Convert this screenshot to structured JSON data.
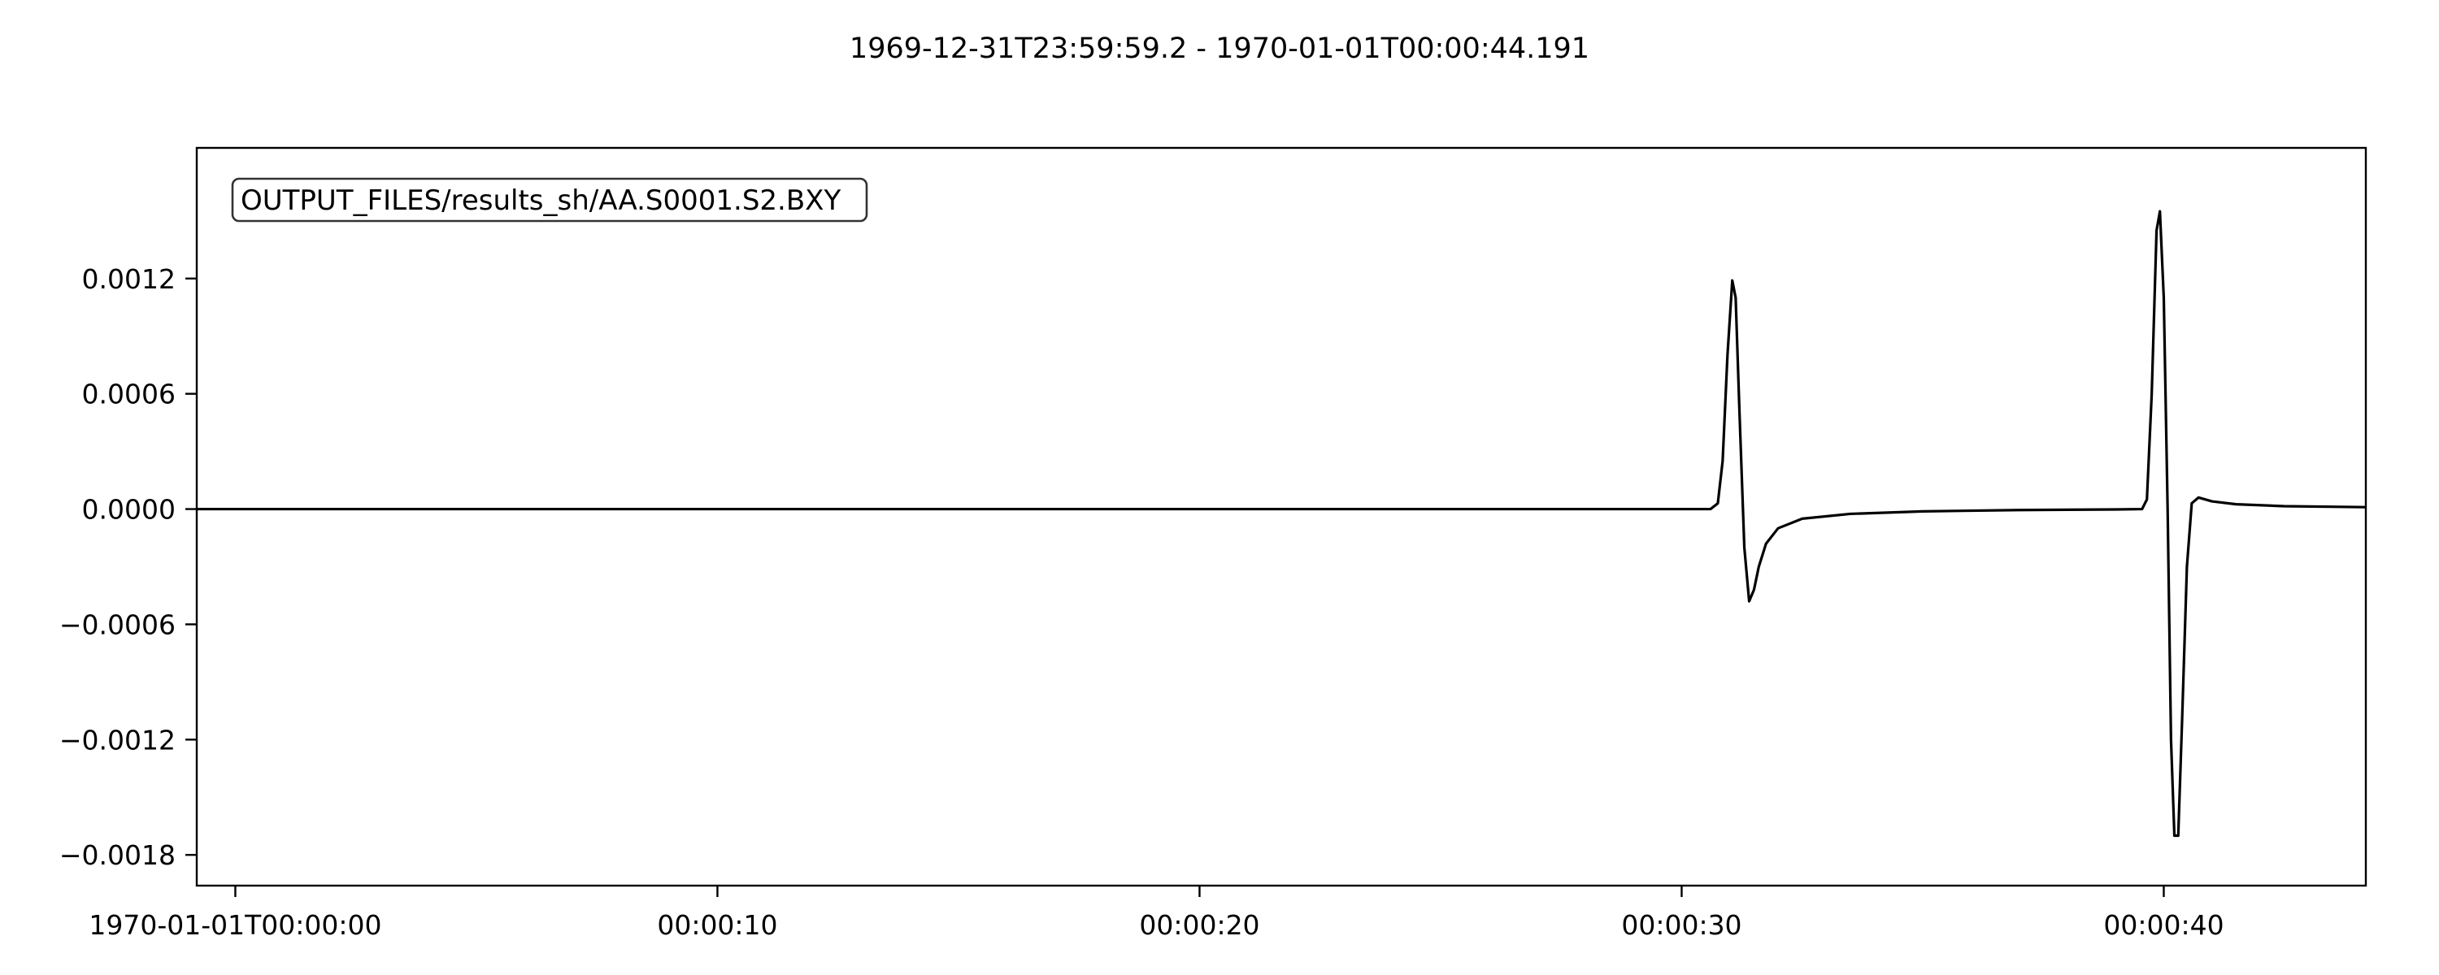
{
  "chart_data": {
    "type": "line",
    "title": "1969-12-31T23:59:59.2  -  1970-01-01T00:00:44.191",
    "xlabel": "",
    "ylabel": "",
    "xlim": [
      -0.8,
      44.191
    ],
    "ylim": [
      -0.00196,
      0.00188
    ],
    "x_ticks": [
      {
        "value": 0,
        "label": "1970-01-01T00:00:00"
      },
      {
        "value": 10,
        "label": "00:00:10"
      },
      {
        "value": 20,
        "label": "00:00:20"
      },
      {
        "value": 30,
        "label": "00:00:30"
      },
      {
        "value": 40,
        "label": "00:00:40"
      }
    ],
    "y_ticks": [
      {
        "value": 0.0012,
        "label": "0.0012"
      },
      {
        "value": 0.0006,
        "label": "0.0006"
      },
      {
        "value": 0.0,
        "label": "0.0000"
      },
      {
        "value": -0.0006,
        "label": "−0.0006"
      },
      {
        "value": -0.0012,
        "label": "−0.0012"
      },
      {
        "value": -0.0018,
        "label": "−0.0018"
      }
    ],
    "grid": false,
    "legend_placement": "top-left",
    "series": [
      {
        "name": "OUTPUT_FILES/results_sh/AA.S0001.S2.BXY",
        "color": "#000000",
        "points": [
          [
            -0.8,
            0.0
          ],
          [
            10.0,
            0.0
          ],
          [
            20.0,
            0.0
          ],
          [
            30.0,
            0.0
          ],
          [
            30.6,
            0.0
          ],
          [
            30.75,
            3e-05
          ],
          [
            30.85,
            0.00025
          ],
          [
            30.95,
            0.0008
          ],
          [
            31.05,
            0.00119
          ],
          [
            31.12,
            0.0011
          ],
          [
            31.2,
            0.0005
          ],
          [
            31.3,
            -0.0002
          ],
          [
            31.4,
            -0.00048
          ],
          [
            31.5,
            -0.00042
          ],
          [
            31.6,
            -0.0003
          ],
          [
            31.75,
            -0.00018
          ],
          [
            32.0,
            -0.0001
          ],
          [
            32.5,
            -5e-05
          ],
          [
            33.5,
            -2.5e-05
          ],
          [
            35.0,
            -1.2e-05
          ],
          [
            37.0,
            -5e-06
          ],
          [
            39.0,
            -2e-06
          ],
          [
            39.55,
            0.0
          ],
          [
            39.65,
            5e-05
          ],
          [
            39.75,
            0.0006
          ],
          [
            39.85,
            0.00145
          ],
          [
            39.92,
            0.00155
          ],
          [
            40.0,
            0.0011
          ],
          [
            40.08,
            0.0
          ],
          [
            40.15,
            -0.0012
          ],
          [
            40.22,
            -0.0017
          ],
          [
            40.3,
            -0.0017
          ],
          [
            40.38,
            -0.0011
          ],
          [
            40.48,
            -0.0003
          ],
          [
            40.58,
            3e-05
          ],
          [
            40.72,
            6e-05
          ],
          [
            41.0,
            4e-05
          ],
          [
            41.5,
            2.5e-05
          ],
          [
            42.5,
            1.5e-05
          ],
          [
            44.191,
            1e-05
          ]
        ]
      }
    ]
  }
}
